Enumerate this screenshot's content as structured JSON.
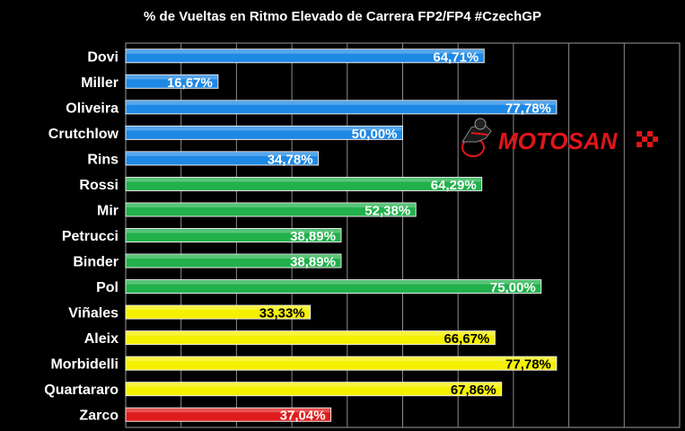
{
  "chart_data": {
    "type": "bar",
    "orientation": "horizontal",
    "title": "% de Vueltas en Ritmo Elevado de Carrera FP2/FP4 #CzechGP",
    "xlabel": "",
    "ylabel": "",
    "xlim": [
      0,
      100
    ],
    "grid": true,
    "categories": [
      "Dovi",
      "Miller",
      "Oliveira",
      "Crutchlow",
      "Rins",
      "Rossi",
      "Mir",
      "Petrucci",
      "Binder",
      "Pol",
      "Viñales",
      "Aleix",
      "Morbidelli",
      "Quartararo",
      "Zarco"
    ],
    "values": [
      64.71,
      16.67,
      77.78,
      50.0,
      34.78,
      64.29,
      52.38,
      38.89,
      38.89,
      75.0,
      33.33,
      66.67,
      77.78,
      67.86,
      37.04
    ],
    "value_labels": [
      "64,71%",
      "16,67%",
      "77,78%",
      "50,00%",
      "34,78%",
      "64,29%",
      "52,38%",
      "38,89%",
      "38,89%",
      "75,00%",
      "33,33%",
      "66,67%",
      "77,78%",
      "67,86%",
      "37,04%"
    ],
    "bar_colors": [
      "#1e88e5",
      "#1e88e5",
      "#1e88e5",
      "#1e88e5",
      "#1e88e5",
      "#22b14c",
      "#22b14c",
      "#22b14c",
      "#22b14c",
      "#22b14c",
      "#f5f000",
      "#f5f000",
      "#f5f000",
      "#f5f000",
      "#e01b1b"
    ],
    "label_colors": [
      "#ffffff",
      "#ffffff",
      "#ffffff",
      "#ffffff",
      "#ffffff",
      "#ffffff",
      "#ffffff",
      "#ffffff",
      "#ffffff",
      "#ffffff",
      "#000000",
      "#000000",
      "#000000",
      "#000000",
      "#ffffff"
    ]
  },
  "logo": {
    "text": "MOTOSAN",
    "color": "#e0151b"
  }
}
